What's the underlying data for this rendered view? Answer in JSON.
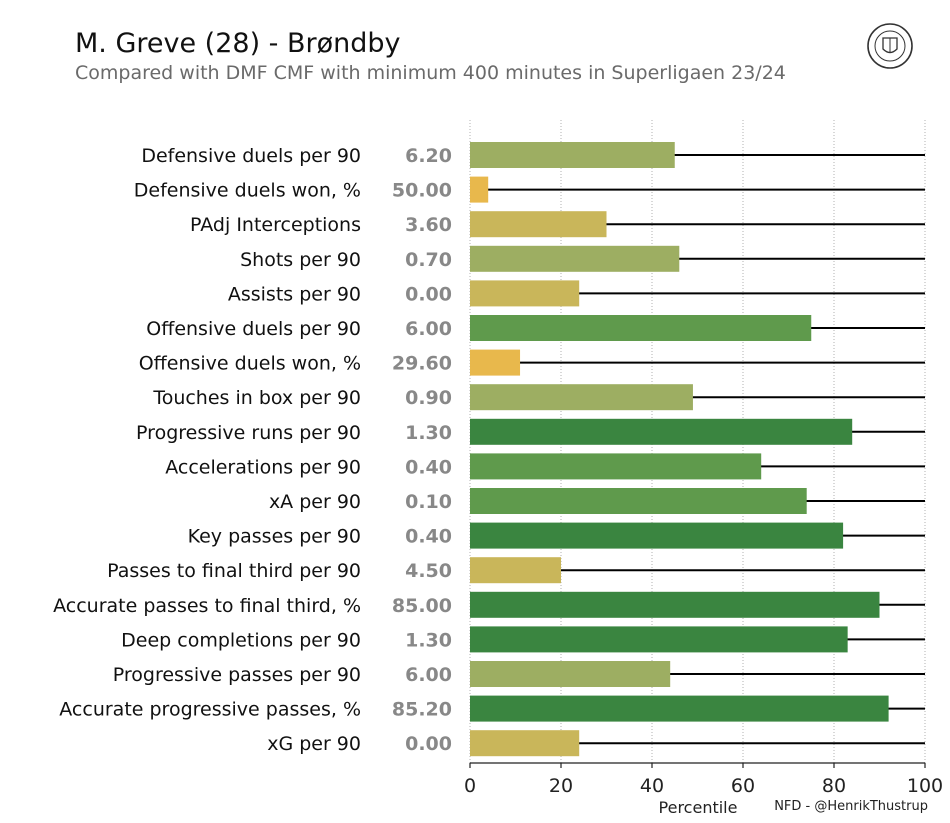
{
  "header": {
    "title": "M. Greve (28) - Brøndby",
    "subtitle": "Compared with DMF CMF with minimum 400 minutes in Superligaen 23/24",
    "logo_text": "NORDIC FOOTBALL DATA"
  },
  "credit": "NFD - @HenrikThustrup",
  "colors": {
    "high": "#3a8540",
    "upper_mid": "#5f9a4c",
    "mid": "#9dae62",
    "lower_mid": "#c9b65a",
    "low": "#e8b84c",
    "value_text": "#888888",
    "line": "#000000",
    "grid": "#b0b0b0"
  },
  "chart_data": {
    "type": "bar",
    "orientation": "horizontal",
    "title": "M. Greve (28) - Brøndby",
    "subtitle": "Compared with DMF CMF with minimum 400 minutes in Superligaen 23/24",
    "xlabel": "Percentile",
    "xlim": [
      0,
      100
    ],
    "xticks": [
      "0",
      "20",
      "40",
      "60",
      "80",
      "100"
    ],
    "grid": "vertical dotted",
    "categories": [
      "Defensive duels per 90",
      "Defensive duels won, %",
      "PAdj Interceptions",
      "Shots per 90",
      "Assists per 90",
      "Offensive duels per 90",
      "Offensive duels won, %",
      "Touches in box per 90",
      "Progressive runs per 90",
      "Accelerations per 90",
      "xA per 90",
      "Key passes per 90",
      "Passes to final third per 90",
      "Accurate passes to final third, %",
      "Deep completions per 90",
      "Progressive passes per 90",
      "Accurate progressive passes, %",
      "xG per 90"
    ],
    "values": [
      45,
      4,
      30,
      46,
      24,
      75,
      11,
      49,
      84,
      64,
      74,
      82,
      20,
      90,
      83,
      44,
      92,
      24
    ],
    "raw_values": [
      "6.20",
      "50.00",
      "3.60",
      "0.70",
      "0.00",
      "6.00",
      "29.60",
      "0.90",
      "1.30",
      "0.40",
      "0.10",
      "0.40",
      "4.50",
      "85.00",
      "1.30",
      "6.00",
      "85.20",
      "0.00"
    ]
  }
}
